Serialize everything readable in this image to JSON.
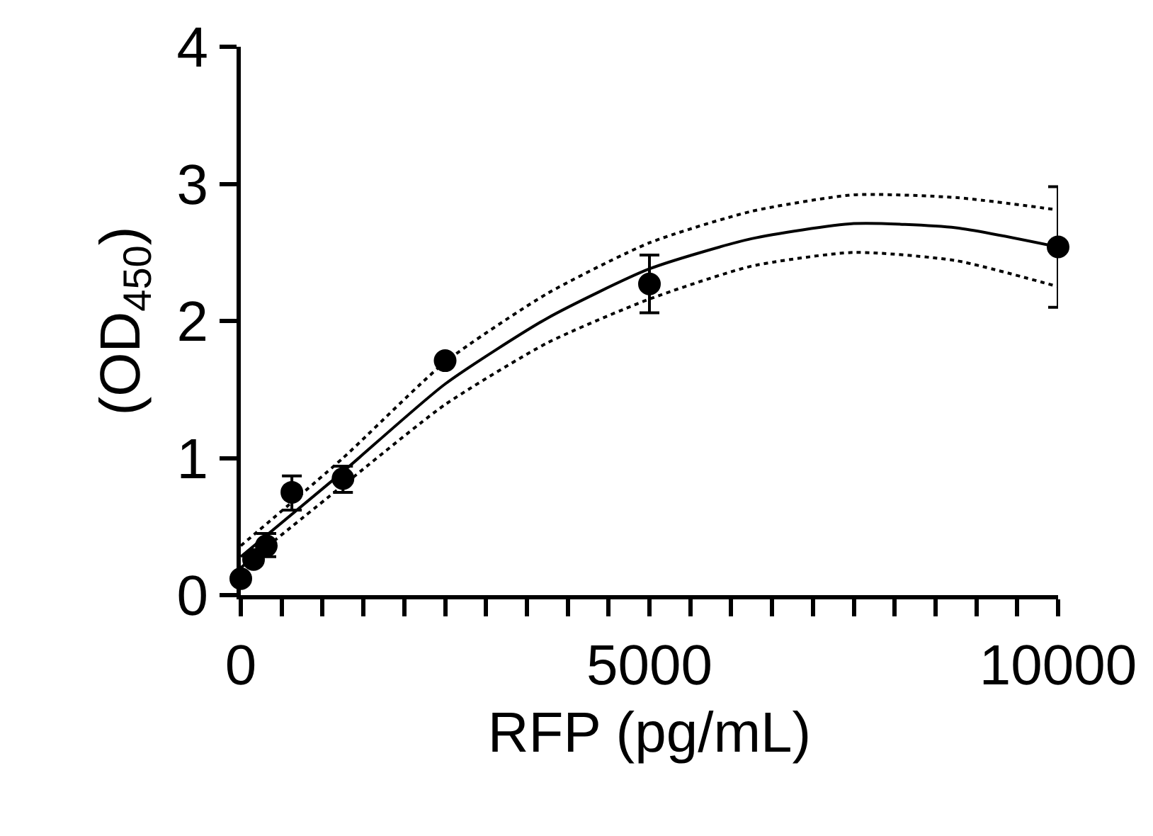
{
  "chart_data": {
    "type": "scatter",
    "xlabel": "RFP (pg/mL)",
    "ylabel": "(OD$_{450}$)",
    "xlim": [
      0,
      10000
    ],
    "ylim": [
      0,
      4
    ],
    "xticks": [
      0,
      {
        "value": 500,
        "label": null
      },
      {
        "value": 1000,
        "label": null
      },
      {
        "value": 1500,
        "label": null
      },
      {
        "value": 2000,
        "label": null
      },
      {
        "value": 2500,
        "label": null
      },
      {
        "value": 3000,
        "label": null
      },
      {
        "value": 3500,
        "label": null
      },
      {
        "value": 4000,
        "label": null
      },
      {
        "value": 4500,
        "label": null
      },
      5000,
      {
        "value": 5500,
        "label": null
      },
      {
        "value": 6000,
        "label": null
      },
      {
        "value": 6500,
        "label": null
      },
      {
        "value": 7000,
        "label": null
      },
      {
        "value": 7500,
        "label": null
      },
      {
        "value": 8000,
        "label": null
      },
      {
        "value": 8500,
        "label": null
      },
      {
        "value": 9000,
        "label": null
      },
      {
        "value": 9500,
        "label": null
      },
      10000
    ],
    "yticks": [
      0,
      1,
      2,
      3,
      4
    ],
    "grid": false,
    "series": [
      {
        "type": "line",
        "color": "#000000",
        "line_style": "dotted",
        "marker": "none",
        "x": [
          0,
          1250,
          2500,
          3750,
          5000,
          6250,
          7500,
          8750,
          10000
        ],
        "values": [
          0.36,
          1.0,
          1.7,
          2.2,
          2.57,
          2.8,
          2.92,
          2.9,
          2.81
        ]
      },
      {
        "type": "line",
        "color": "#000000",
        "line_style": "dotted",
        "marker": "none",
        "x": [
          0,
          1250,
          2500,
          3750,
          5000,
          6250,
          7500,
          8750,
          10000
        ],
        "values": [
          0.2,
          0.8,
          1.39,
          1.84,
          2.16,
          2.4,
          2.5,
          2.44,
          2.25
        ]
      },
      {
        "type": "line",
        "color": "#000000",
        "line_style": "solid",
        "marker": "none",
        "x": [
          0,
          1250,
          2500,
          3750,
          5000,
          6250,
          7500,
          8750,
          10000
        ],
        "values": [
          0.28,
          0.9,
          1.54,
          2.02,
          2.38,
          2.6,
          2.71,
          2.68,
          2.54
        ]
      },
      {
        "color": "#000000",
        "marker": "circle",
        "x": [
          0,
          156,
          312,
          625,
          1250,
          2500,
          5000,
          10000
        ],
        "values": [
          0.12,
          0.26,
          0.36,
          0.75,
          0.85,
          1.71,
          2.27,
          2.54
        ],
        "errors": [
          null,
          null,
          [
            0.28,
            0.45
          ],
          [
            0.62,
            0.87
          ],
          [
            0.75,
            0.94
          ],
          null,
          [
            2.06,
            2.48
          ],
          [
            2.1,
            2.98
          ]
        ]
      }
    ]
  }
}
